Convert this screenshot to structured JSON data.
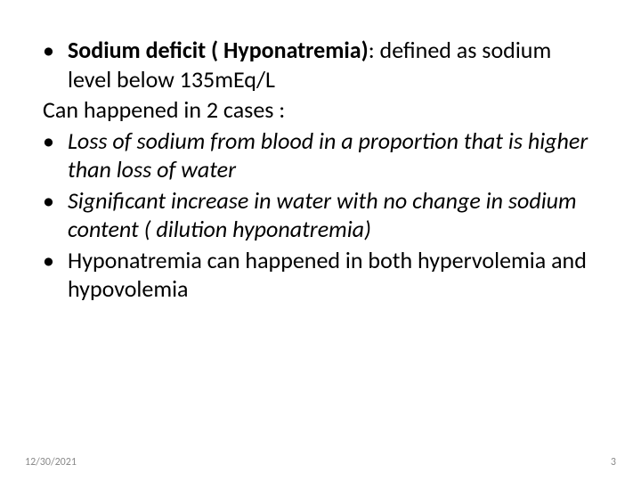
{
  "slide": {
    "background_color": "#ffffff",
    "text_color": "#000000",
    "footer_color": "#8a8a8a",
    "body_fontsize": 26,
    "footer_fontsize": 12,
    "line_height": 1.25,
    "items": [
      {
        "kind": "bullet",
        "style": "plain",
        "bold_prefix": "Sodium deficit ( Hyponatremia)",
        "rest": ": defined as sodium level below 135mEq/L"
      },
      {
        "kind": "flush",
        "style": "plain",
        "text": "Can happened in 2 cases :"
      },
      {
        "kind": "bullet",
        "style": "italic",
        "text": "Loss of sodium from blood in a proportion that is higher than loss of water"
      },
      {
        "kind": "bullet",
        "style": "italic",
        "text": "Significant increase in water with no change in sodium content ( dilution hyponatremia)"
      },
      {
        "kind": "bullet",
        "style": "plain",
        "text": "Hyponatremia can happened in both hypervolemia and hypovolemia"
      }
    ]
  },
  "footer": {
    "date": "12/30/2021",
    "page": "3"
  }
}
